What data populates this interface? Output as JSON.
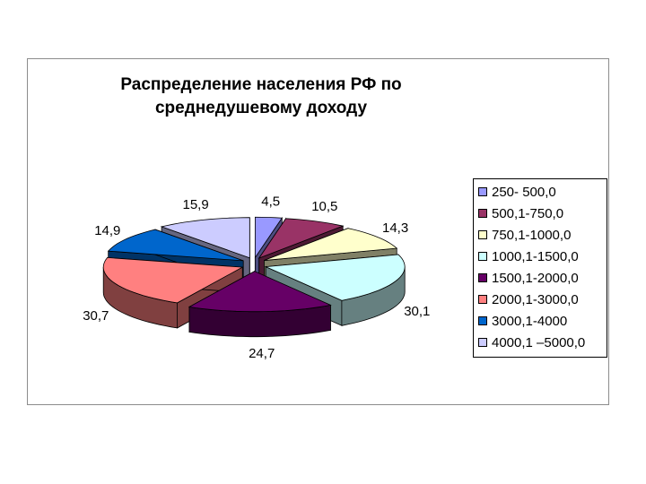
{
  "chart_data": {
    "type": "pie",
    "title": "Распределение населения РФ по\nсреднедушевому доходу",
    "categories": [
      "250- 500,0",
      "500,1-750,0",
      "750,1-1000,0",
      "1000,1-1500,0",
      "1500,1-2000,0",
      "2000,1-3000,0",
      "3000,1-4000",
      "4000,1 –5000,0"
    ],
    "values": [
      4.5,
      10.5,
      14.3,
      30.1,
      24.7,
      30.7,
      14.9,
      15.9
    ],
    "value_labels": [
      "4,5",
      "10,5",
      "14,3",
      "30,1",
      "24,7",
      "30,7",
      "14,9",
      "15,9"
    ],
    "colors": [
      "#9999ff",
      "#993366",
      "#ffffcc",
      "#ccffff",
      "#660066",
      "#ff8080",
      "#0066cc",
      "#ccccff"
    ],
    "exploded": true,
    "3d": true,
    "legend_position": "right"
  }
}
